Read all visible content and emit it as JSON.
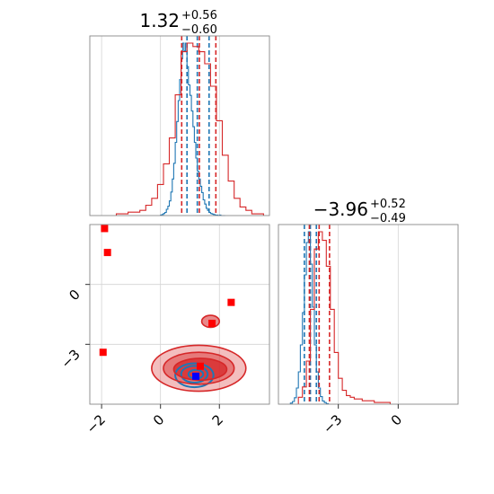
{
  "chart_data": {
    "type": "corner",
    "parameters": [
      "",
      ""
    ],
    "titles": [
      {
        "main": "1.32",
        "plus": "+0.56",
        "minus": "−0.60"
      },
      {
        "main": "−3.96",
        "plus": "+0.52",
        "minus": "−0.49"
      }
    ],
    "axes": {
      "p1_range": [
        -2.4,
        3.7
      ],
      "p2_range": [
        -6.0,
        3.0
      ],
      "p1_ticks": [
        {
          "value": -2,
          "label": "−2"
        },
        {
          "value": 0,
          "label": "0"
        },
        {
          "value": 2,
          "label": "2"
        }
      ],
      "p2_ticks": [
        {
          "value": -3,
          "label": "−3"
        },
        {
          "value": 0,
          "label": "0"
        }
      ],
      "grid": true
    },
    "series": [
      {
        "name": "",
        "color": "#1f77b4",
        "p1_hist": {
          "bins": [
            0.0,
            0.05,
            0.1,
            0.15,
            0.2,
            0.25,
            0.3,
            0.35,
            0.4,
            0.45,
            0.5,
            0.55,
            0.6,
            0.65,
            0.7,
            0.75,
            0.8,
            0.85,
            0.9,
            0.95,
            1.0,
            1.05,
            1.1,
            1.15,
            1.2,
            1.25,
            1.3,
            1.35,
            1.4,
            1.45,
            1.5,
            1.55,
            1.6,
            1.65,
            1.7,
            1.75,
            1.8,
            1.85,
            1.9,
            1.95,
            2.0,
            2.05,
            2.1,
            2.15,
            2.2
          ],
          "counts": [
            1,
            2,
            4,
            6,
            12,
            18,
            28,
            45,
            70,
            100,
            140,
            180,
            220,
            260,
            300,
            330,
            315,
            330,
            285,
            250,
            230,
            200,
            170,
            140,
            110,
            85,
            70,
            56,
            44,
            30,
            22,
            14,
            10,
            6,
            4,
            3,
            2,
            1,
            1,
            0,
            1,
            0,
            0,
            0
          ]
        },
        "p2_hist": {
          "bins": [
            -5.4,
            -5.3,
            -5.2,
            -5.1,
            -5.0,
            -4.9,
            -4.8,
            -4.7,
            -4.6,
            -4.5,
            -4.4,
            -4.3,
            -4.2,
            -4.1,
            -4.0,
            -3.9,
            -3.8,
            -3.7,
            -3.6,
            -3.5
          ],
          "counts": [
            2,
            5,
            12,
            30,
            60,
            110,
            170,
            240,
            300,
            320,
            260,
            180,
            110,
            60,
            30,
            14,
            6,
            3,
            1
          ]
        },
        "quantile_lines": {
          "p1": [
            0.9,
            1.25,
            1.65
          ],
          "p2": [
            -4.7,
            -4.4,
            -4.1
          ]
        },
        "truth": {
          "p1": 1.2,
          "p2": -4.6
        },
        "contours": [
          {
            "center": [
              1.15,
              -4.55
            ],
            "radii": [
              0.65,
              0.6
            ]
          },
          {
            "center": [
              1.15,
              -4.5
            ],
            "radii": [
              0.45,
              0.42
            ]
          },
          {
            "center": [
              1.2,
              -4.5
            ],
            "radii": [
              0.25,
              0.22
            ]
          }
        ]
      },
      {
        "name": "",
        "color": "#d62728",
        "p1_hist": {
          "bins": [
            -1.5,
            -1.3,
            -1.1,
            -0.9,
            -0.7,
            -0.5,
            -0.3,
            -0.1,
            0.1,
            0.3,
            0.5,
            0.7,
            0.9,
            1.1,
            1.3,
            1.5,
            1.7,
            1.9,
            2.1,
            2.3,
            2.5,
            2.7,
            2.9,
            3.1,
            3.3,
            3.5
          ],
          "counts": [
            1,
            1,
            2,
            2,
            3,
            6,
            10,
            18,
            30,
            45,
            70,
            95,
            100,
            98,
            95,
            88,
            75,
            55,
            35,
            20,
            10,
            5,
            3,
            1,
            1
          ]
        },
        "p2_hist": {
          "bins": [
            -5.0,
            -4.8,
            -4.6,
            -4.4,
            -4.2,
            -4.0,
            -3.8,
            -3.6,
            -3.4,
            -3.2,
            -3.0,
            -2.8,
            -2.6,
            -2.4,
            -2.2,
            -2.0,
            -1.8,
            -1.6,
            -1.4,
            -1.2,
            -1.0,
            -0.8,
            -0.6,
            -0.4
          ],
          "counts": [
            4,
            10,
            25,
            55,
            90,
            100,
            95,
            80,
            55,
            30,
            15,
            8,
            5,
            4,
            3,
            3,
            2,
            2,
            2,
            1,
            1,
            1,
            1
          ]
        },
        "quantile_lines": {
          "p1": [
            0.72,
            1.32,
            1.88
          ],
          "p2": [
            -4.45,
            -3.96,
            -3.44
          ]
        },
        "truth": {
          "p1": 1.35,
          "p2": -4.1
        },
        "contours": [
          {
            "center": [
              1.3,
              -4.2
            ],
            "radii": [
              1.6,
              1.15
            ]
          },
          {
            "center": [
              1.3,
              -4.2
            ],
            "radii": [
              1.2,
              0.8
            ]
          },
          {
            "center": [
              1.35,
              -4.25
            ],
            "radii": [
              0.9,
              0.55
            ]
          },
          {
            "center": [
              1.7,
              -1.85
            ],
            "radii": [
              0.3,
              0.3
            ]
          }
        ],
        "samples": [
          {
            "p1": -1.9,
            "p2": 2.8
          },
          {
            "p1": -1.8,
            "p2": 1.6
          },
          {
            "p1": -1.95,
            "p2": -3.4
          },
          {
            "p1": 2.4,
            "p2": -0.9
          },
          {
            "p1": 1.75,
            "p2": -1.95
          }
        ]
      }
    ]
  }
}
